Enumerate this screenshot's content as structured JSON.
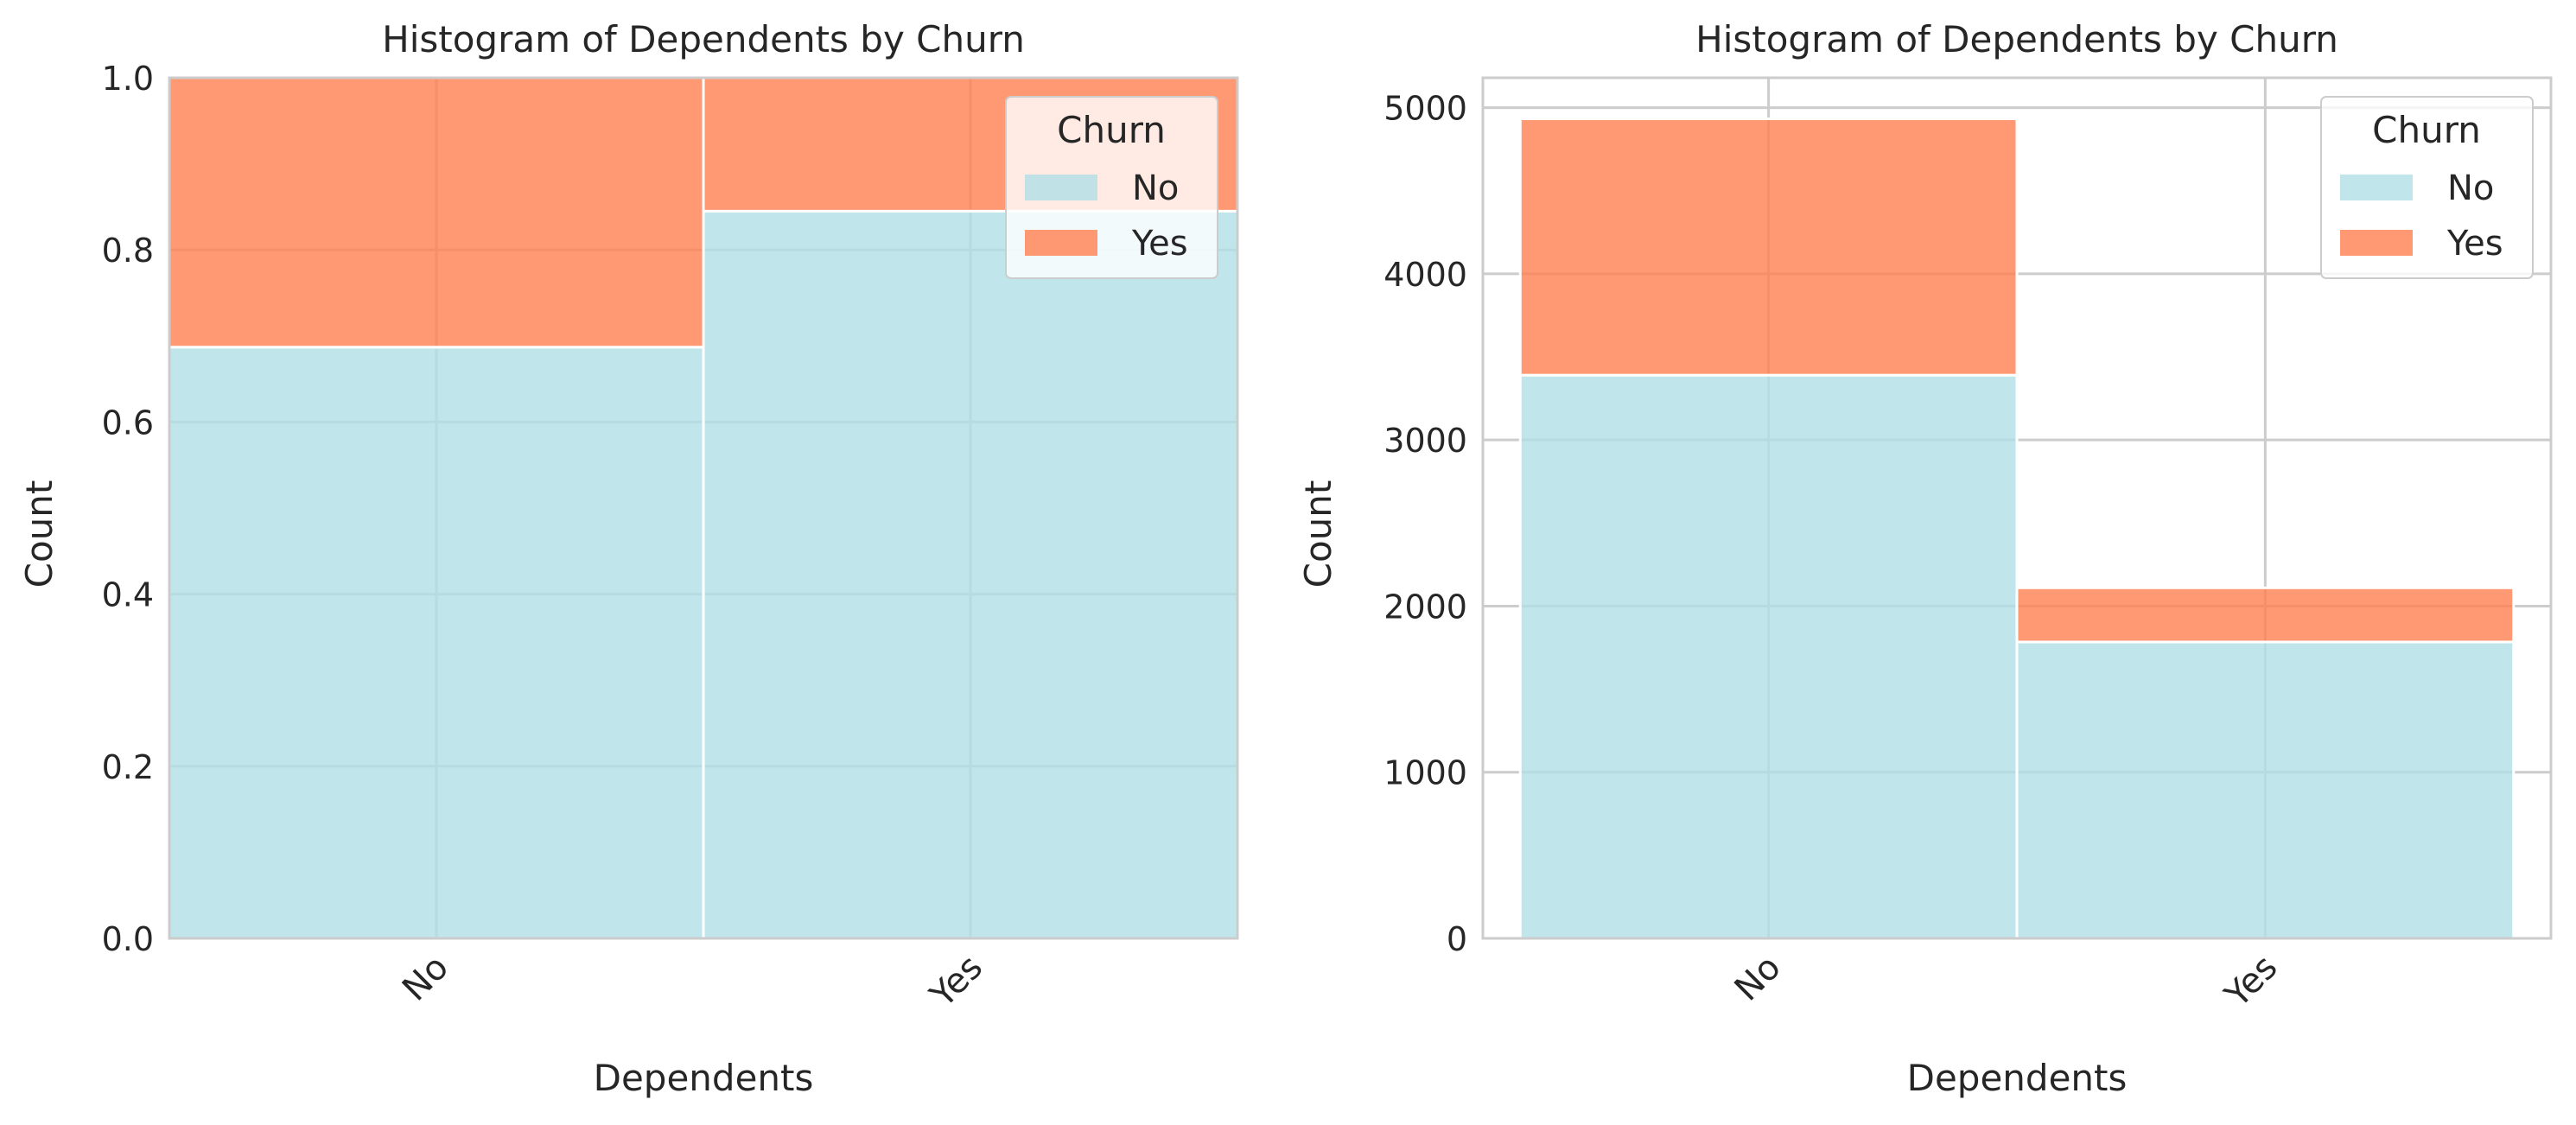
{
  "chart_data": [
    {
      "type": "bar",
      "stacked": true,
      "normalized": true,
      "title": "Histogram of Dependents by Churn",
      "xlabel": "Dependents",
      "ylabel": "Count",
      "categories": [
        "No",
        "Yes"
      ],
      "series": [
        {
          "name": "No",
          "values": [
            0.687,
            0.845
          ],
          "color": "#b0e0e6"
        },
        {
          "name": "Yes",
          "values": [
            0.313,
            0.155
          ],
          "color": "#ff7f50"
        }
      ],
      "ylim": [
        0,
        1.0
      ],
      "yticks": [
        0.0,
        0.2,
        0.4,
        0.6,
        0.8,
        1.0
      ],
      "ytick_labels": [
        "0.0",
        "0.2",
        "0.4",
        "0.6",
        "0.8",
        "1.0"
      ],
      "grid": true,
      "legend": {
        "title": "Churn",
        "position": "top-right",
        "entries": [
          "No",
          "Yes"
        ]
      }
    },
    {
      "type": "bar",
      "stacked": true,
      "normalized": false,
      "title": "Histogram of Dependents by Churn",
      "xlabel": "Dependents",
      "ylabel": "Count",
      "categories": [
        "No",
        "Yes"
      ],
      "series": [
        {
          "name": "No",
          "values": [
            3390,
            1784
          ],
          "color": "#b0e0e6"
        },
        {
          "name": "Yes",
          "values": [
            1543,
            326
          ],
          "color": "#ff7f50"
        }
      ],
      "ylim": [
        0,
        5180
      ],
      "yticks": [
        0,
        1000,
        2000,
        3000,
        4000,
        5000
      ],
      "ytick_labels": [
        "0",
        "1000",
        "2000",
        "3000",
        "4000",
        "5000"
      ],
      "grid": true,
      "legend": {
        "title": "Churn",
        "position": "top-right",
        "entries": [
          "No",
          "Yes"
        ]
      }
    }
  ]
}
